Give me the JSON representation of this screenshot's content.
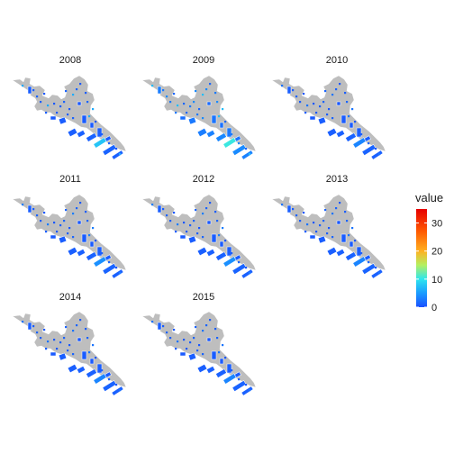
{
  "chart_data": {
    "type": "heatmap",
    "subtype": "faceted choropleth map",
    "facets": [
      "2008",
      "2009",
      "2010",
      "2011",
      "2012",
      "2013",
      "2014",
      "2015"
    ],
    "legend": {
      "title": "value",
      "ticks": [
        0,
        10,
        20,
        30
      ],
      "range": [
        0,
        35
      ],
      "placement": "right"
    },
    "colorscale": [
      {
        "value": 0,
        "color": "#1a50ff"
      },
      {
        "value": 5,
        "color": "#1a9cff"
      },
      {
        "value": 10,
        "color": "#2ee6ee"
      },
      {
        "value": 15,
        "color": "#b4f060"
      },
      {
        "value": 20,
        "color": "#ffb020"
      },
      {
        "value": 27,
        "color": "#ff5a00"
      },
      {
        "value": 35,
        "color": "#e60000"
      }
    ],
    "no_data_color": "#bebebe",
    "panel_values": [
      {
        "facet": "2008",
        "typical_value": 1,
        "max_value": 10
      },
      {
        "facet": "2009",
        "typical_value": 3,
        "max_value": 12
      },
      {
        "facet": "2010",
        "typical_value": 1,
        "max_value": 4
      },
      {
        "facet": "2011",
        "typical_value": 1,
        "max_value": 5
      },
      {
        "facet": "2012",
        "typical_value": 1,
        "max_value": 5
      },
      {
        "facet": "2013",
        "typical_value": 1,
        "max_value": 4
      },
      {
        "facet": "2014",
        "typical_value": 1,
        "max_value": 4
      },
      {
        "facet": "2015",
        "typical_value": 1,
        "max_value": 4
      }
    ],
    "grid": false,
    "axes": false
  }
}
